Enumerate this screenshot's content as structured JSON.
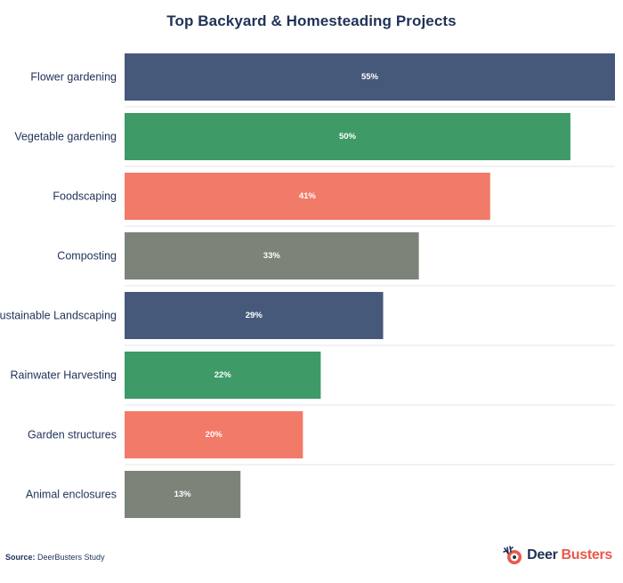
{
  "chart_data": {
    "type": "bar",
    "orientation": "horizontal",
    "title": "Top Backyard & Homesteading Projects",
    "categories": [
      "Flower gardening",
      "Vegetable gardening",
      "Foodscaping",
      "Composting",
      "Sustainable Landscaping",
      "Rainwater Harvesting",
      "Garden structures",
      "Animal enclosures"
    ],
    "values": [
      55,
      50,
      41,
      33,
      29,
      22,
      20,
      13
    ],
    "value_labels": [
      "55%",
      "50%",
      "41%",
      "33%",
      "29%",
      "22%",
      "20%",
      "13%"
    ],
    "unit": "%",
    "xlim": [
      0,
      55
    ],
    "grid": false,
    "colors": [
      "#46597a",
      "#3e9a66",
      "#f27a68",
      "#7c847a",
      "#46597a",
      "#3e9a66",
      "#f27a68",
      "#7c847a"
    ]
  },
  "footer": {
    "source_label": "Source:",
    "source_text": "DeerBusters Study"
  },
  "brand": {
    "word1": "Deer",
    "word2": "Busters",
    "icon": "deer-logo-icon"
  }
}
